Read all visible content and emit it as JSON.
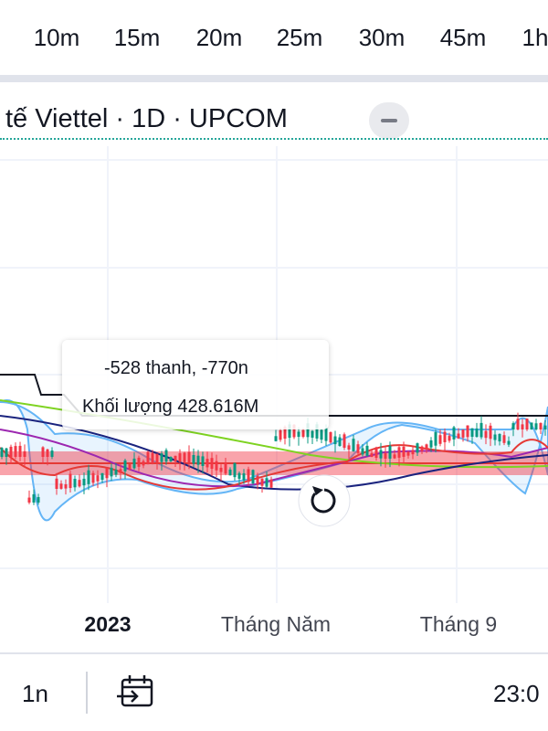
{
  "timeframes": [
    "10m",
    "15m",
    "20m",
    "25m",
    "30m",
    "45m",
    "1h"
  ],
  "header": {
    "title": "tế Viettel · 1D · UPCOM"
  },
  "tooltip": {
    "bars": "-528 thanh, -770n",
    "volume": "Khối lượng 428.616M"
  },
  "x_axis": {
    "labels": [
      "2023",
      "Tháng Năm",
      "Tháng 9"
    ]
  },
  "bottom_bar": {
    "range": "1n",
    "time": "23:0"
  }
}
